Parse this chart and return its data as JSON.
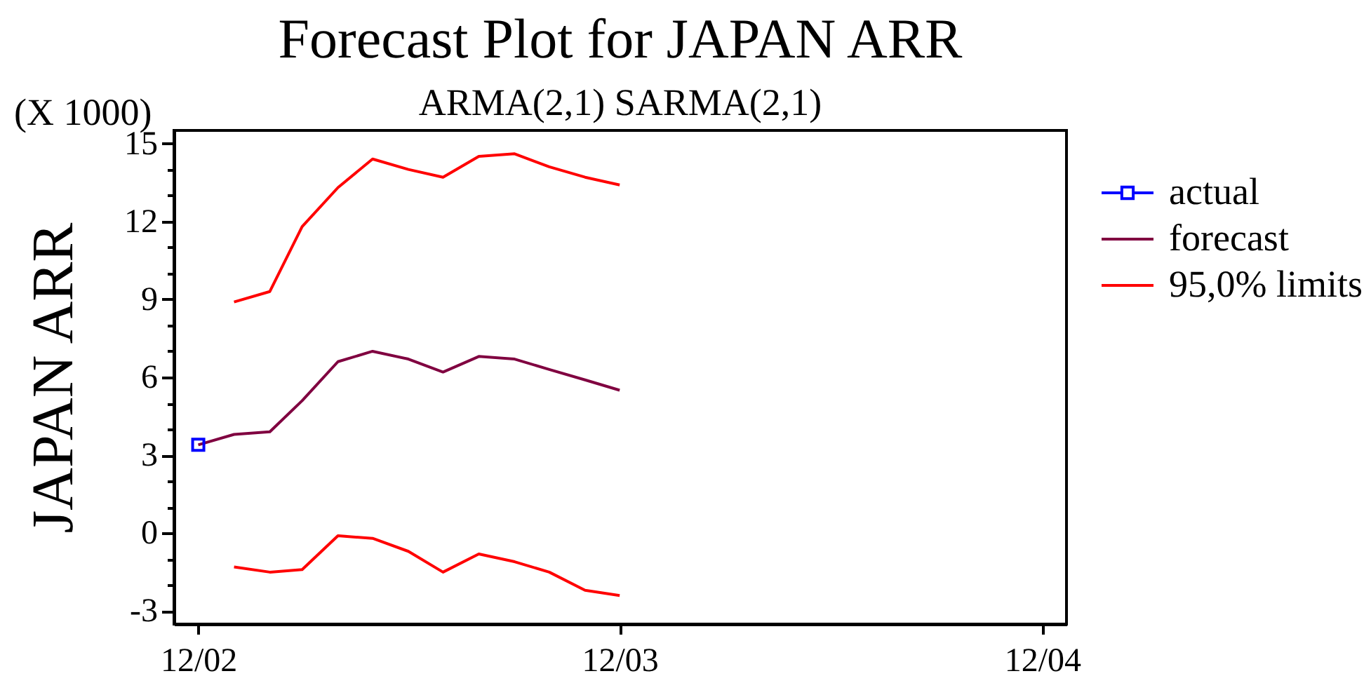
{
  "chart_data": {
    "type": "line",
    "title": "Forecast Plot for JAPAN ARR",
    "subtitle": "ARMA(2,1) SARMA(2,1)",
    "ylabel": "JAPAN ARR",
    "annotations": [
      "(X 1000)"
    ],
    "x": [
      "2002-12",
      "2003-01",
      "2003-02",
      "2003-03",
      "2003-04",
      "2003-05",
      "2003-06",
      "2003-07",
      "2003-08",
      "2003-09",
      "2003-10",
      "2003-11",
      "2003-12"
    ],
    "series": [
      {
        "name": "actual",
        "color": "#0000ff",
        "x": [
          "2002-12"
        ],
        "values": [
          3.4
        ],
        "marker": "square"
      },
      {
        "name": "forecast",
        "color": "#800040",
        "values": [
          3.4,
          3.8,
          3.9,
          5.1,
          6.6,
          7.0,
          6.7,
          6.2,
          6.8,
          6.7,
          6.3,
          5.9,
          5.5
        ]
      },
      {
        "name": "95,0% limits",
        "color": "#ff0000",
        "values": [
          null,
          8.9,
          9.3,
          11.8,
          13.3,
          14.4,
          14.0,
          13.7,
          14.5,
          14.6,
          14.1,
          13.7,
          13.4
        ]
      },
      {
        "color": "#ff0000",
        "values": [
          null,
          -1.3,
          -1.5,
          -1.4,
          -0.1,
          -0.2,
          -0.7,
          -1.5,
          -0.8,
          -1.1,
          -1.5,
          -2.2,
          -2.4
        ]
      }
    ],
    "xlim": [
      "2002-11-10",
      "2004-12-22"
    ],
    "xticks": [
      {
        "value": "2002-12",
        "label": "12/02"
      },
      {
        "value": "2003-12",
        "label": "12/03"
      },
      {
        "value": "2004-12",
        "label": "12/04"
      }
    ],
    "ylim": [
      -3.5,
      15.5
    ],
    "yticks": [
      -3,
      {
        "value": -2,
        "label": null
      },
      {
        "value": -1,
        "label": null
      },
      0,
      {
        "value": 1,
        "label": null
      },
      {
        "value": 2,
        "label": null
      },
      3,
      {
        "value": 4,
        "label": null
      },
      {
        "value": 5,
        "label": null
      },
      6,
      {
        "value": 7,
        "label": null
      },
      {
        "value": 8,
        "label": null
      },
      9,
      {
        "value": 10,
        "label": null
      },
      {
        "value": 11,
        "label": null
      },
      12,
      {
        "value": 13,
        "label": null
      },
      {
        "value": 14,
        "label": null
      },
      15
    ],
    "legend": "right",
    "marker": "none",
    "line_style": "solid"
  }
}
